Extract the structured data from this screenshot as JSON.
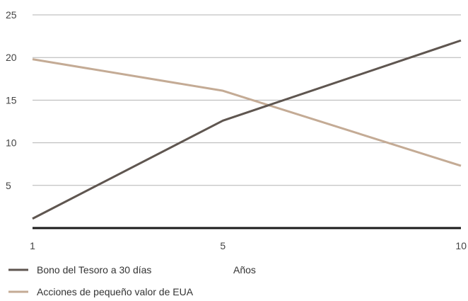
{
  "chart_data": {
    "type": "line",
    "title": "",
    "xlabel": "Años",
    "ylabel": "",
    "x": [
      1,
      5,
      10
    ],
    "x_ticks": [
      "1",
      "5",
      "10"
    ],
    "y_ticks": [
      "5",
      "10",
      "15",
      "20",
      "25"
    ],
    "ylim": [
      0,
      25
    ],
    "grid": true,
    "legend_position": "bottom-left",
    "series": [
      {
        "name": "Bono del Tesoro a 30 días",
        "values": [
          1.1,
          12.6,
          22.0
        ],
        "color": "#5f5650"
      },
      {
        "name": "Acciones de pequeño valor de EUA",
        "values": [
          19.8,
          16.1,
          7.3
        ],
        "color": "#c4ab95"
      }
    ]
  }
}
